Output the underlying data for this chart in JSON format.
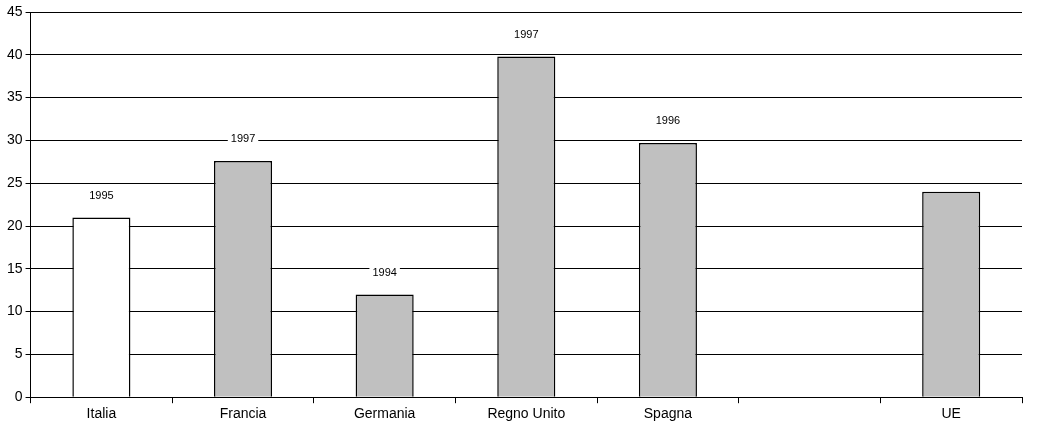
{
  "chart_data": {
    "type": "bar",
    "categories": [
      "Italia",
      "Francia",
      "Germania",
      "Regno Unito",
      "Spagna",
      null,
      "UE"
    ],
    "values": [
      21,
      27.6,
      12,
      39.8,
      29.7,
      null,
      24
    ],
    "colors": [
      "#ffffff",
      "#c0c0c0",
      "#c0c0c0",
      "#c0c0c0",
      "#c0c0c0",
      "#c0c0c0",
      "#c0c0c0"
    ],
    "ylim": [
      0,
      45
    ],
    "yticks": [
      0,
      5,
      10,
      15,
      20,
      25,
      30,
      35,
      40,
      45
    ],
    "grid": "y",
    "legend": false,
    "annotations": [
      {
        "text": "1995",
        "x": "Italia",
        "y": 21
      },
      {
        "text": "1997",
        "x": "Francia",
        "y": 27.6
      },
      {
        "text": "1994",
        "x": "Germania",
        "y": 12
      },
      {
        "text": "1997",
        "x": "Regno Unito",
        "y": 39.8
      },
      {
        "text": "1996",
        "x": "Spagna",
        "y": 29.7
      }
    ]
  }
}
